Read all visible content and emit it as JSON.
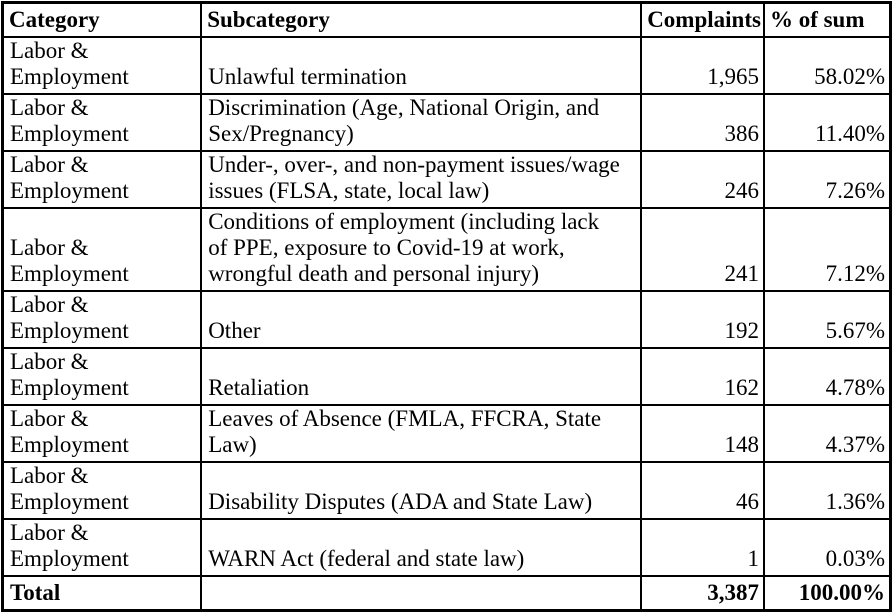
{
  "table": {
    "headers": {
      "category": "Category",
      "subcategory": "Subcategory",
      "complaints": "Complaints",
      "percent": "% of sum"
    },
    "rows": [
      {
        "category": "Labor &\nEmployment",
        "subcategory": "Unlawful termination",
        "complaints": "1,965",
        "percent": "58.02%"
      },
      {
        "category": "Labor &\nEmployment",
        "subcategory": "Discrimination (Age, National Origin, and\nSex/Pregnancy)",
        "complaints": "386",
        "percent": "11.40%"
      },
      {
        "category": "Labor &\nEmployment",
        "subcategory": "Under-, over-, and non-payment issues/wage\nissues (FLSA, state, local law)",
        "complaints": "246",
        "percent": "7.26%"
      },
      {
        "category": "Labor &\nEmployment",
        "subcategory": "Conditions of employment (including lack\nof PPE, exposure to Covid-19 at work,\nwrongful death and personal injury)",
        "complaints": "241",
        "percent": "7.12%"
      },
      {
        "category": "Labor &\nEmployment",
        "subcategory": "Other",
        "complaints": "192",
        "percent": "5.67%"
      },
      {
        "category": "Labor &\nEmployment",
        "subcategory": "Retaliation",
        "complaints": "162",
        "percent": "4.78%"
      },
      {
        "category": "Labor &\nEmployment",
        "subcategory": "Leaves of Absence (FMLA, FFCRA, State\nLaw)",
        "complaints": "148",
        "percent": "4.37%"
      },
      {
        "category": "Labor &\nEmployment",
        "subcategory": "Disability Disputes (ADA and State Law)",
        "complaints": "46",
        "percent": "1.36%"
      },
      {
        "category": "Labor &\nEmployment",
        "subcategory": "WARN Act (federal and state law)",
        "complaints": "1",
        "percent": "0.03%"
      }
    ],
    "total": {
      "label": "Total",
      "subcategory": "",
      "complaints": "3,387",
      "percent": "100.00%"
    },
    "colors": {
      "border": "#000000",
      "text": "#000000",
      "background": "#ffffff"
    }
  }
}
